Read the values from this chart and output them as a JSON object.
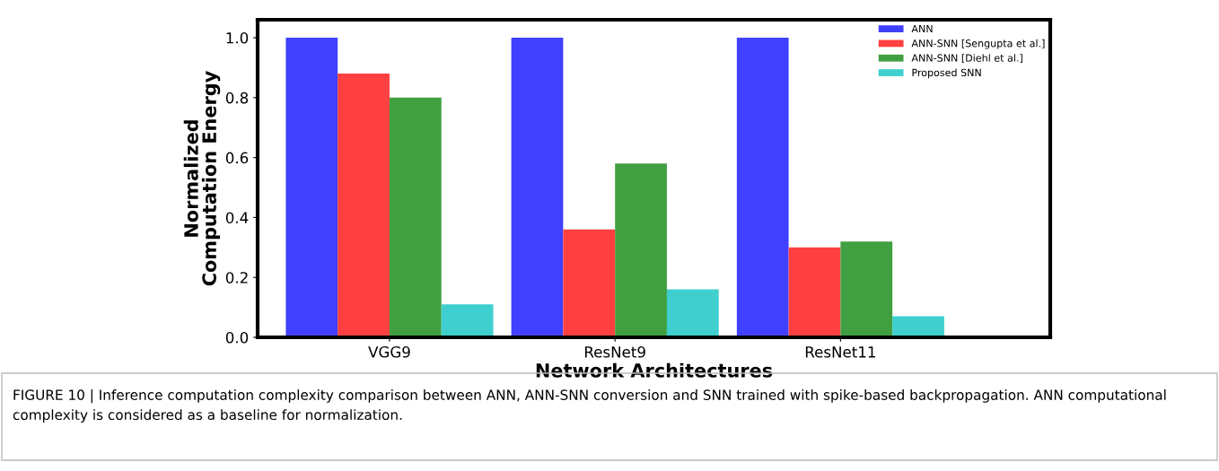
{
  "chart_data": {
    "type": "bar",
    "categories": [
      "VGG9",
      "ResNet9",
      "ResNet11"
    ],
    "series": [
      {
        "name": "ANN",
        "color": "#4040ff",
        "values": [
          1.0,
          1.0,
          1.0
        ]
      },
      {
        "name": "ANN-SNN [Sengupta et al.]",
        "color": "#ff4040",
        "values": [
          0.88,
          0.36,
          0.3
        ]
      },
      {
        "name": "ANN-SNN [Diehl et al.]",
        "color": "#409f40",
        "values": [
          0.8,
          0.58,
          0.32
        ]
      },
      {
        "name": "Proposed SNN",
        "color": "#40cfcf",
        "values": [
          0.11,
          0.16,
          0.07
        ]
      }
    ],
    "xlabel": "Network Architectures",
    "ylabel": "Normalized\nComputation Energy",
    "ylim": [
      0,
      1.06
    ],
    "yticks": [
      {
        "value": 0,
        "label": "0.0"
      },
      {
        "value": 0.2,
        "label": "0.2"
      },
      {
        "value": 0.4,
        "label": "0.4"
      },
      {
        "value": 0.6,
        "label": "0.6"
      },
      {
        "value": 0.8,
        "label": "0.8"
      },
      {
        "value": 1,
        "label": "1.0"
      }
    ],
    "legend": "top right",
    "grid": false,
    "annotations": [
      "FIGURE 10 | Inference computation complexity comparison between ANN, ANN-SNN conversion and SNN trained with spike-based backpropagation. ANN computational complexity is considered as a baseline for normalization."
    ]
  }
}
